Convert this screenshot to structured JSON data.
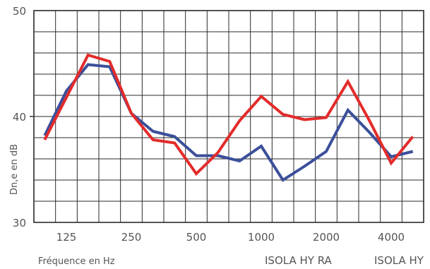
{
  "chart_data": {
    "type": "line",
    "title": "",
    "xlabel": "Fréquence en Hz",
    "ylabel": "Dn,e en dB",
    "ylim": [
      30,
      50
    ],
    "yticks": [
      "30",
      "40",
      "50"
    ],
    "x": [
      "100",
      "125",
      "160",
      "200",
      "250",
      "315",
      "400",
      "500",
      "630",
      "800",
      "1000",
      "1250",
      "1600",
      "2000",
      "2500",
      "3150",
      "4000",
      "5000"
    ],
    "xtick_labels": [
      "125",
      "250",
      "500",
      "1000",
      "2000",
      "4000"
    ],
    "grid": true,
    "series": [
      {
        "name": "ISOLA HY RA",
        "color": "#e32b2b",
        "values": [
          37.8,
          41.8,
          45.8,
          45.2,
          40.3,
          37.8,
          37.5,
          34.6,
          36.6,
          39.6,
          41.9,
          40.2,
          39.7,
          39.9,
          43.3,
          39.6,
          35.6,
          38.1
        ]
      },
      {
        "name": "ISOLA HY",
        "color": "#3b4f9a",
        "values": [
          38.2,
          42.4,
          44.9,
          44.7,
          40.3,
          38.6,
          38.1,
          36.3,
          36.3,
          35.8,
          37.2,
          34.0,
          35.3,
          36.7,
          40.6,
          38.5,
          36.2,
          36.7
        ]
      }
    ]
  }
}
